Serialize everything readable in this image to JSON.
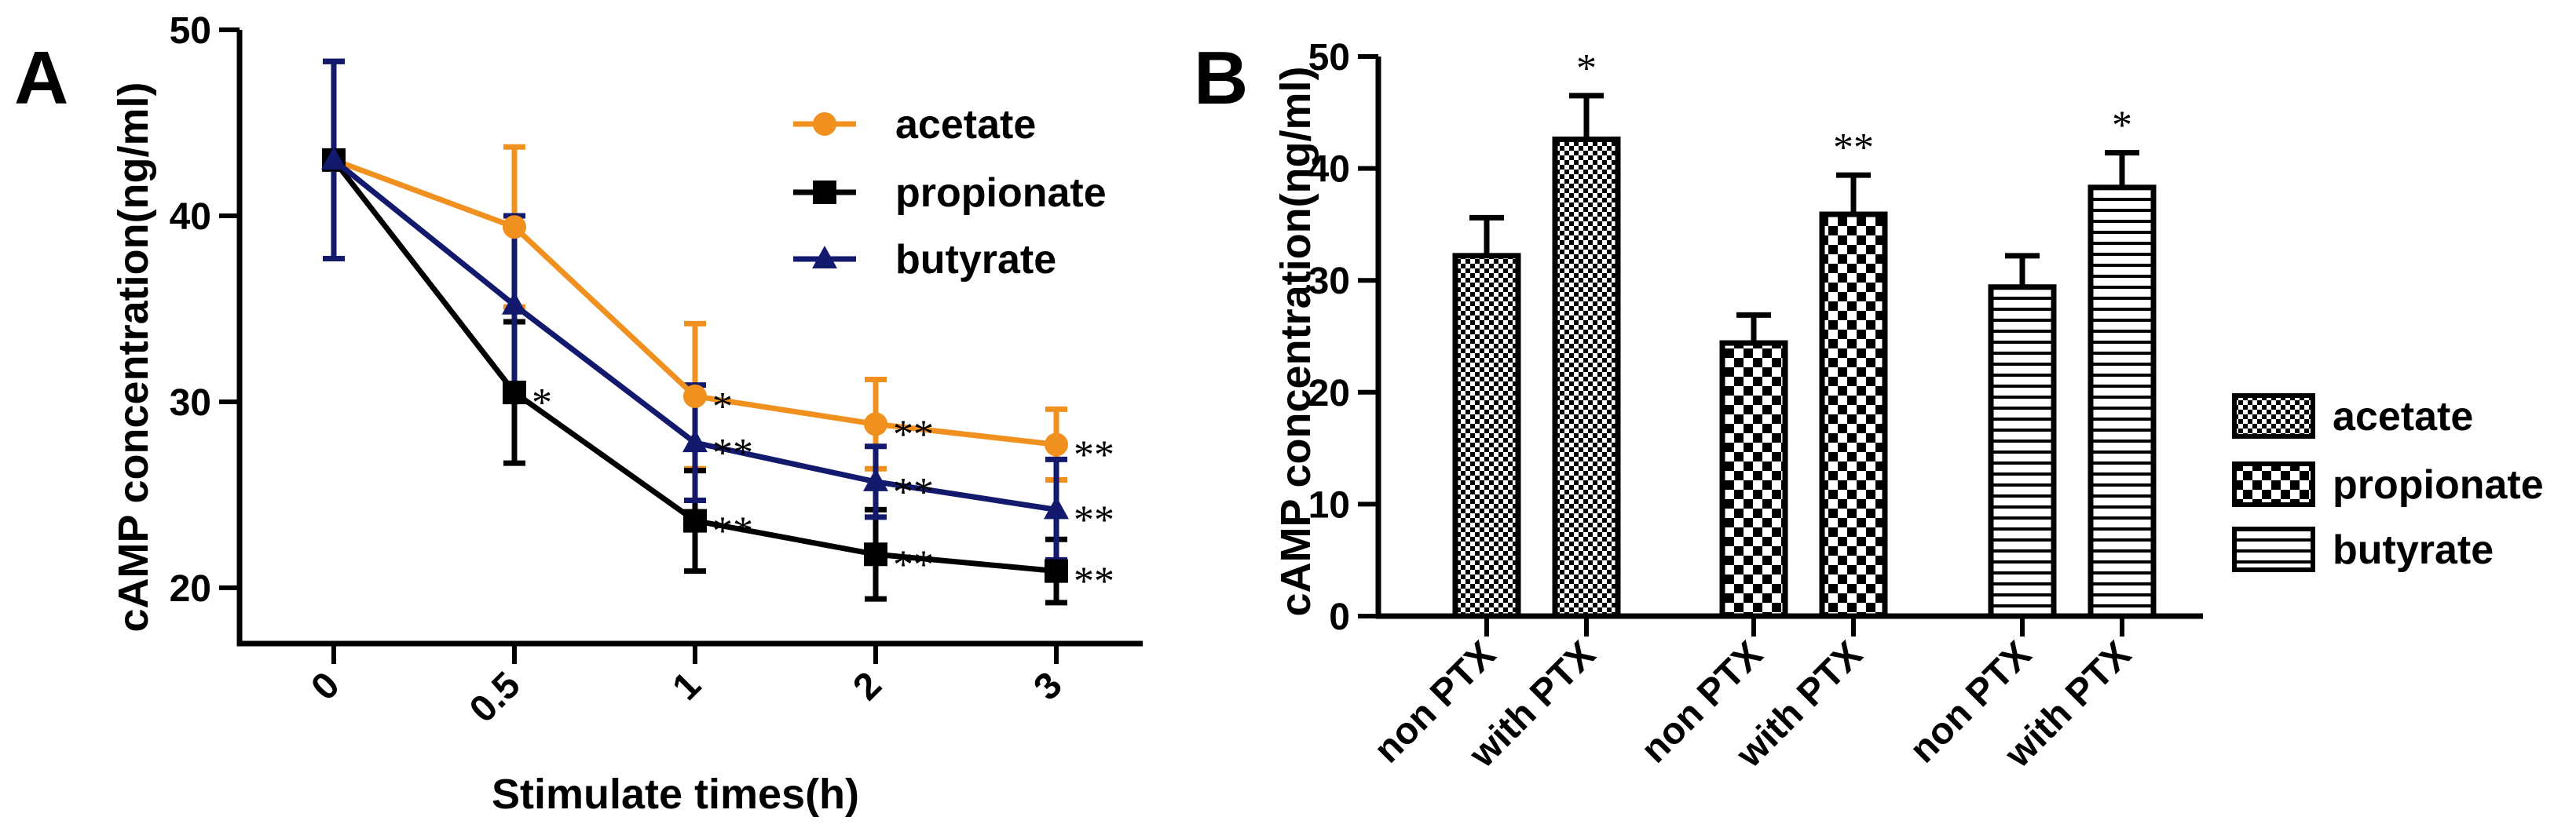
{
  "chart_data": [
    {
      "panel_label": "A",
      "type": "line",
      "xlabel": "Stimulate times(h)",
      "ylabel": "cAMP concentration(ng/ml)",
      "categories": [
        "0",
        "0.5",
        "1",
        "2",
        "3"
      ],
      "ylim": [
        17,
        50
      ],
      "yticks": [
        "20",
        "30",
        "40",
        "50"
      ],
      "series": [
        {
          "name": "acetate",
          "color": "#f0901e",
          "marker": "circle",
          "values": [
            43.0,
            39.4,
            30.3,
            28.8,
            27.7
          ],
          "errors": [
            5.3,
            4.3,
            3.9,
            2.4,
            1.9
          ],
          "annotations": [
            "",
            "",
            "*",
            "**",
            "**"
          ]
        },
        {
          "name": "propionate",
          "color": "#000000",
          "marker": "square",
          "values": [
            43.0,
            30.5,
            23.6,
            21.8,
            20.9
          ],
          "errors": [
            5.3,
            3.8,
            2.7,
            2.4,
            1.7
          ],
          "annotations": [
            "",
            "*",
            "**",
            "**",
            "**"
          ]
        },
        {
          "name": "butyrate",
          "color": "#131a6e",
          "marker": "triangle",
          "values": [
            43.0,
            35.2,
            27.8,
            25.7,
            24.2
          ],
          "errors": [
            5.3,
            4.8,
            3.1,
            1.9,
            2.7
          ],
          "annotations": [
            "",
            "",
            "**",
            "**",
            "**"
          ]
        }
      ]
    },
    {
      "panel_label": "B",
      "type": "bar",
      "ylabel": "cAMP concentration(ng/ml)",
      "categories": [
        "non PTX",
        "with PTX",
        "non PTX",
        "with PTX",
        "non PTX",
        "with PTX"
      ],
      "ylim": [
        0,
        50
      ],
      "yticks": [
        "0",
        "10",
        "20",
        "30",
        "40",
        "50"
      ],
      "values": [
        32.2,
        42.6,
        24.4,
        35.9,
        29.4,
        38.3
      ],
      "errors": [
        3.4,
        3.9,
        2.5,
        3.5,
        2.8,
        3.1
      ],
      "annotations": [
        "",
        "*",
        "",
        "**",
        "",
        "*"
      ],
      "groups": [
        "acetate",
        "acetate",
        "propionate",
        "propionate",
        "butyrate",
        "butyrate"
      ],
      "legend": [
        {
          "name": "acetate",
          "pattern": "fine-check"
        },
        {
          "name": "propionate",
          "pattern": "coarse-check"
        },
        {
          "name": "butyrate",
          "pattern": "horizontal-lines"
        }
      ]
    }
  ]
}
